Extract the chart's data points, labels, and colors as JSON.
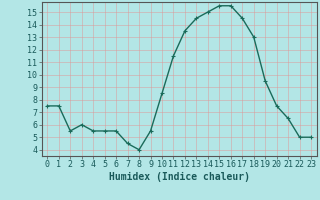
{
  "x": [
    0,
    1,
    2,
    3,
    4,
    5,
    6,
    7,
    8,
    9,
    10,
    11,
    12,
    13,
    14,
    15,
    16,
    17,
    18,
    19,
    20,
    21,
    22,
    23
  ],
  "y": [
    7.5,
    7.5,
    5.5,
    6.0,
    5.5,
    5.5,
    5.5,
    4.5,
    4.0,
    5.5,
    8.5,
    11.5,
    13.5,
    14.5,
    15.0,
    15.5,
    15.5,
    14.5,
    13.0,
    9.5,
    7.5,
    6.5,
    5.0,
    5.0
  ],
  "line_color": "#1a6b5a",
  "marker": "+",
  "marker_size": 3,
  "bg_color": "#b3e6e6",
  "grid_color": "#dd9999",
  "xlabel": "Humidex (Indice chaleur)",
  "xlabel_fontsize": 7,
  "xlim": [
    -0.5,
    23.5
  ],
  "ylim": [
    3.5,
    15.8
  ],
  "yticks": [
    4,
    5,
    6,
    7,
    8,
    9,
    10,
    11,
    12,
    13,
    14,
    15
  ],
  "xticks": [
    0,
    1,
    2,
    3,
    4,
    5,
    6,
    7,
    8,
    9,
    10,
    11,
    12,
    13,
    14,
    15,
    16,
    17,
    18,
    19,
    20,
    21,
    22,
    23
  ],
  "tick_fontsize": 6,
  "line_width": 1.0
}
